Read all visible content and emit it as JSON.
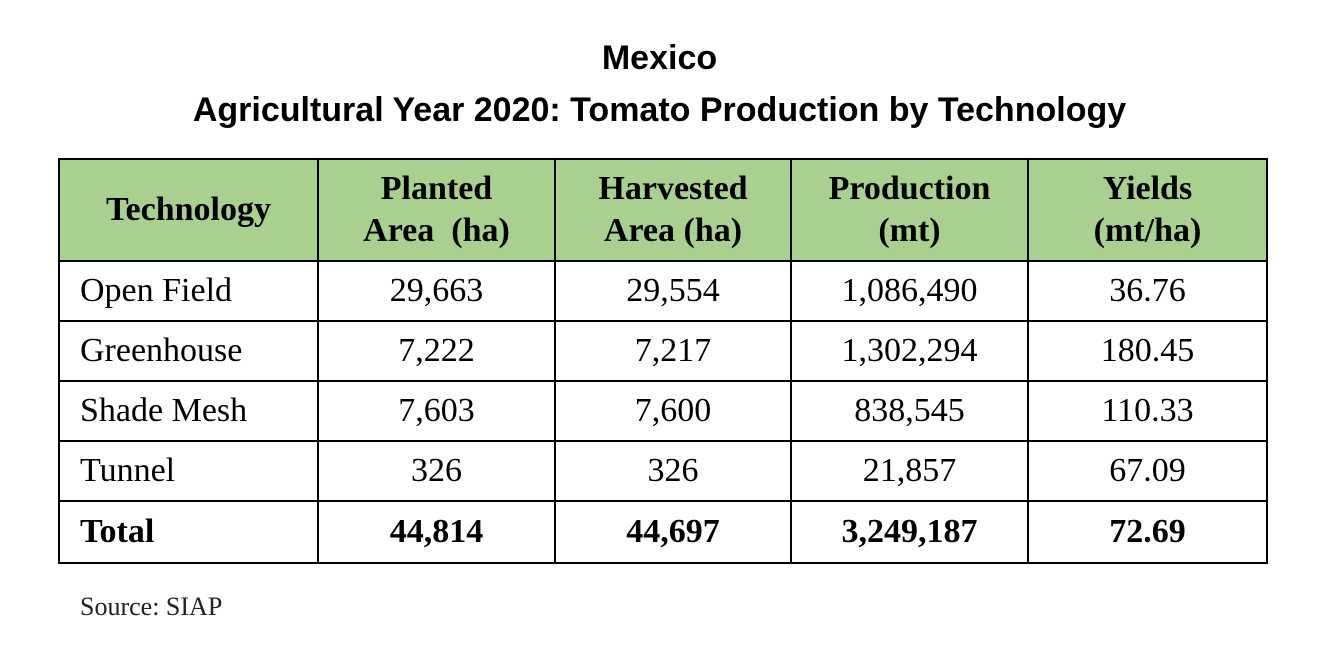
{
  "title_line1": "Mexico",
  "title_line2": "Agricultural Year 2020: Tomato Production by Technology",
  "header_color": "#a9d08e",
  "source": "Source: SIAP",
  "chart_data": {
    "type": "table",
    "columns": [
      {
        "line1": "Technology",
        "line2": ""
      },
      {
        "line1": "Planted",
        "line2": "Area  (ha)"
      },
      {
        "line1": "Harvested",
        "line2": "Area (ha)"
      },
      {
        "line1": "Production",
        "line2": "(mt)"
      },
      {
        "line1": "Yields",
        "line2": "(mt/ha)"
      }
    ],
    "rows": [
      [
        "Open Field",
        "29,663",
        "29,554",
        "1,086,490",
        "36.76"
      ],
      [
        "Greenhouse",
        "7,222",
        "7,217",
        "1,302,294",
        "180.45"
      ],
      [
        "Shade Mesh",
        "7,603",
        "7,600",
        "838,545",
        "110.33"
      ],
      [
        "Tunnel",
        "326",
        "326",
        "21,857",
        "67.09"
      ],
      [
        "Total",
        "44,814",
        "44,697",
        "3,249,187",
        "72.69"
      ]
    ]
  }
}
